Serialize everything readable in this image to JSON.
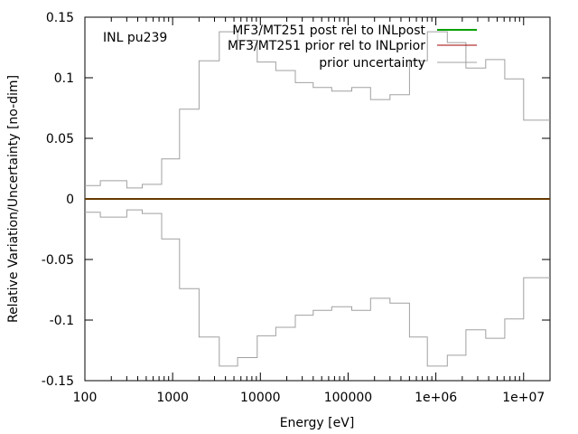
{
  "chart_data": {
    "type": "line",
    "title": "",
    "annotation": "INL pu239",
    "xlabel": "Energy [eV]",
    "ylabel": "Relative Variation/Uncertainty [no-dim]",
    "xscale": "log",
    "xlim": [
      100,
      20000000
    ],
    "ylim": [
      -0.15,
      0.15
    ],
    "grid": false,
    "legend_position": "top-right",
    "x_tick_labels": [
      {
        "value": 100,
        "label": "100"
      },
      {
        "value": 1000,
        "label": "1000"
      },
      {
        "value": 10000,
        "label": "10000"
      },
      {
        "value": 100000,
        "label": "100000"
      },
      {
        "value": 1000000,
        "label": "1e+06"
      },
      {
        "value": 10000000,
        "label": "1e+07"
      }
    ],
    "y_tick_labels": [
      {
        "value": 0.15,
        "label": "0.15"
      },
      {
        "value": 0.1,
        "label": "0.1"
      },
      {
        "value": 0.05,
        "label": "0.05"
      },
      {
        "value": 0,
        "label": "0"
      },
      {
        "value": -0.05,
        "label": "-0.05"
      },
      {
        "value": -0.1,
        "label": "-0.1"
      },
      {
        "value": -0.15,
        "label": "-0.15"
      }
    ],
    "series": [
      {
        "name": "MF3/MT251 post rel to INLpost",
        "color": "#00a000",
        "style": "line",
        "x": [
          100,
          20000000
        ],
        "y": [
          0,
          0
        ]
      },
      {
        "name": "MF3/MT251 prior rel to INLprior",
        "color": "#a00000",
        "style": "line",
        "x": [
          100,
          20000000
        ],
        "y": [
          0,
          0
        ]
      },
      {
        "name": "prior uncertainty",
        "color": "#a0a0a0",
        "style": "steps-mirrored",
        "bin_edges": [
          100,
          150,
          300,
          450,
          750,
          1200,
          2000,
          3400,
          5500,
          9200,
          15000,
          25000,
          40000,
          65000,
          110000,
          180000,
          300000,
          500000,
          800000,
          1350000,
          2200000,
          3700000,
          6100000,
          10000000,
          20000000
        ],
        "values": [
          0.011,
          0.015,
          0.009,
          0.012,
          0.033,
          0.074,
          0.114,
          0.138,
          0.131,
          0.113,
          0.106,
          0.096,
          0.092,
          0.089,
          0.092,
          0.082,
          0.086,
          0.114,
          0.138,
          0.129,
          0.108,
          0.115,
          0.099,
          0.065
        ]
      }
    ]
  }
}
